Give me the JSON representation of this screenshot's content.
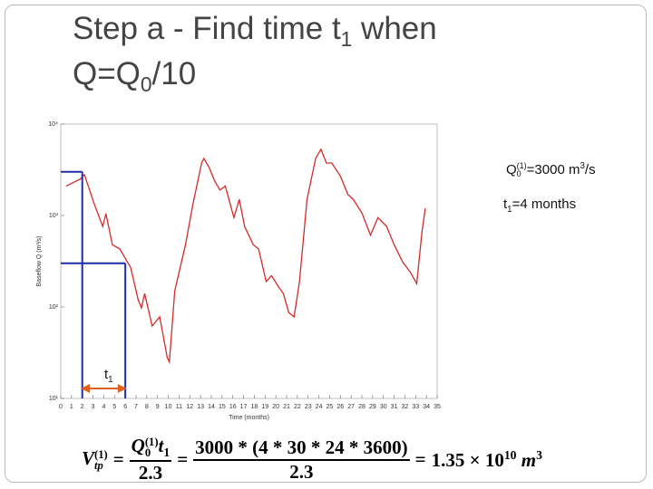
{
  "slide": {
    "title_line1": [
      "Step a - Find time t",
      "1",
      " when"
    ],
    "title_line2": [
      "Q=Q",
      "0",
      "/10"
    ],
    "note_q0": [
      "Q",
      "0",
      "(1)",
      "=3000 m",
      "3",
      "/s"
    ],
    "note_t1": [
      "t",
      "1",
      "=4 months"
    ],
    "formula": {
      "v": "V",
      "v_sup": "(1)",
      "v_sub": "tp",
      "eq": "=",
      "f1_q": "Q",
      "f1_q_sup": "(1)",
      "f1_q_sub": "0",
      "f1_t": "t",
      "f1_t_sub": "1",
      "f1_den": "2.3",
      "f2_num": "3000 * (4 * 30 * 24 * 3600)",
      "f2_den": "2.3",
      "result": "1.35 × 10",
      "result_exp": "10",
      "unit": "m",
      "unit_exp": "3"
    }
  },
  "chart_data": {
    "type": "line",
    "x_label": "Time (months)",
    "y_label": "Baseflow Q (m³/s)",
    "x": [
      0.5,
      1.8,
      2.2,
      3.1,
      3.9,
      4.2,
      4.8,
      5.5,
      6.5,
      7.2,
      7.5,
      7.8,
      8.5,
      9.2,
      9.9,
      10.1,
      10.6,
      11.6,
      12.3,
      13.1,
      13.3,
      13.8,
      14.3,
      14.8,
      15.3,
      16.1,
      16.6,
      17.1,
      17.9,
      18.4,
      19.1,
      19.6,
      20.2,
      20.7,
      21.2,
      21.7,
      22.2,
      22.9,
      23.7,
      24.2,
      24.7,
      25.2,
      26.0,
      26.7,
      27.2,
      28.0,
      28.8,
      29.5,
      30.3,
      31.0,
      31.8,
      32.5,
      33.1,
      33.6,
      33.9
    ],
    "series": [
      {
        "color": "#d42a2a",
        "values": [
          2100,
          2500,
          2800,
          1350,
          760,
          1050,
          480,
          430,
          270,
          120,
          98,
          140,
          62,
          78,
          28,
          25,
          150,
          480,
          1350,
          3750,
          4200,
          3350,
          2400,
          1900,
          2100,
          950,
          1500,
          760,
          480,
          430,
          190,
          220,
          170,
          140,
          87,
          78,
          190,
          1500,
          4200,
          5300,
          3750,
          3750,
          2700,
          1700,
          1500,
          1070,
          610,
          950,
          760,
          480,
          310,
          240,
          180,
          680,
          1200
        ]
      }
    ],
    "xlim": [
      0,
      35
    ],
    "xticks": [
      0,
      1,
      2,
      3,
      4,
      5,
      6,
      7,
      8,
      9,
      10,
      11,
      12,
      13,
      14,
      15,
      16,
      17,
      18,
      19,
      20,
      21,
      22,
      23,
      24,
      25,
      26,
      27,
      28,
      29,
      30,
      31,
      32,
      33,
      34,
      35
    ],
    "ylim": [
      10,
      10000
    ],
    "yscale": "log",
    "yticks": [
      {
        "value": 10,
        "label": "10¹"
      },
      {
        "value": 100,
        "label": "10²"
      },
      {
        "value": 1000,
        "label": "10³"
      },
      {
        "value": 10000,
        "label": "10⁴"
      }
    ],
    "guides": [
      {
        "x": 2,
        "y": 3000
      },
      {
        "x": 6,
        "y": 300
      }
    ],
    "guide_color": "#1f2fa8",
    "arrow_color": "#e06020",
    "arrow_label": [
      "t",
      "1"
    ]
  }
}
